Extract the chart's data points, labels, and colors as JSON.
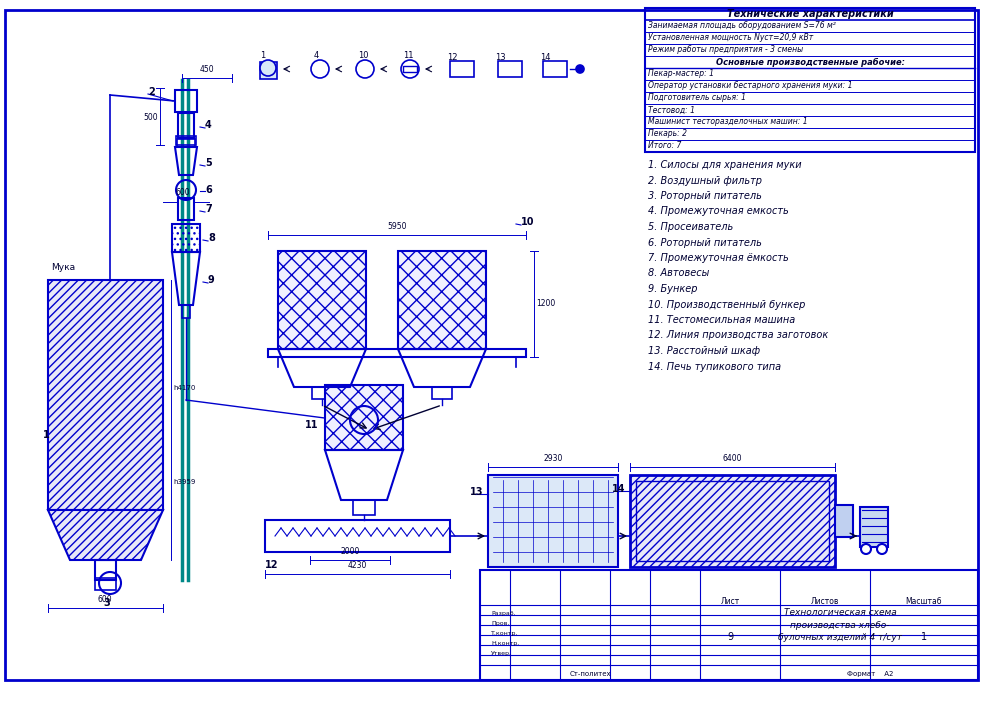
{
  "bg_color": "#ffffff",
  "line_color": "#0000cc",
  "line_color2": "#008888",
  "title_text": "Технологическая схема\nпроизводства хлебо-\nбулочных изделий 4 т/сут",
  "tech_title": "Технические характеристики",
  "tech_lines_normal": [
    "Занимаемая площадь оборудованием S=76 м²",
    "Установленная мощность Nуст=20,9 кВт",
    "Режим работы предприятия - 3 смены"
  ],
  "tech_bold_row": "Основные производственные рабочие:",
  "tech_staff_rows": [
    "Пекар-мастер: 1",
    "Оператор установки бестарного хранения муки: 1",
    "Подготовитель сырья: 1",
    "Тестовод: 1",
    "Машинист тесторазделочных машин: 1",
    "Пекарь: 2",
    "Итого: 7"
  ],
  "legend_lines": [
    "1. Силосы для хранения муки",
    "2. Воздушный фильтр",
    "3. Роторный питатель",
    "4. Промежуточная емкость",
    "5. Просеиватель",
    "6. Роторный питатель",
    "7. Промежуточная ёмкость",
    "8. Автовесы",
    "9. Бункер",
    "10. Производственный бункер",
    "11. Тестомесильная машина",
    "12. Линия производства заготовок",
    "13. Расстойный шкаф",
    "14. Печь тупикового типа"
  ]
}
